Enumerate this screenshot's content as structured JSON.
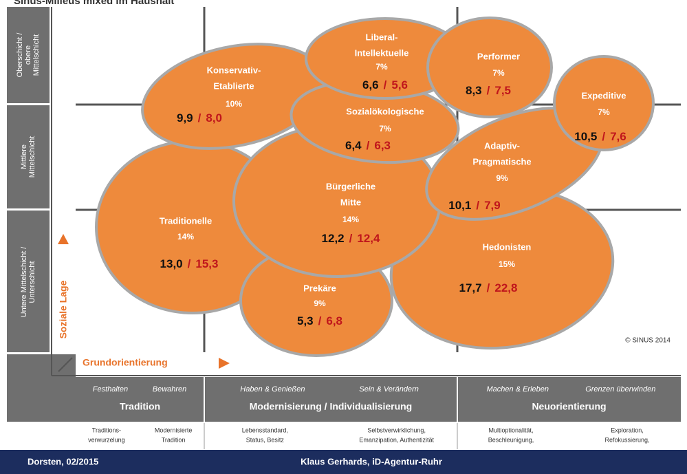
{
  "header": {
    "title": "Sinus-Milieus mixed im Haushalt"
  },
  "y_axis": {
    "rows": [
      [
        "Oberschicht /",
        "obere",
        "Mittelschicht"
      ],
      [
        "Mittlere",
        "Mittelschicht"
      ],
      [
        "Untere Mittelschicht /",
        "Unterschicht"
      ]
    ],
    "label": "Soziale Lage"
  },
  "x_axis": {
    "label": "Grundorientierung"
  },
  "separator": "/",
  "milieus": [
    {
      "name": [
        "Traditionelle"
      ],
      "share": "14%",
      "value_a": "13,0",
      "value_b": "15,3"
    },
    {
      "name": [
        "Hedonisten"
      ],
      "share": "15%",
      "value_a": "17,7",
      "value_b": "22,8"
    },
    {
      "name": [
        "Prekäre"
      ],
      "share": "9%",
      "value_a": "5,3",
      "value_b": "6,8"
    },
    {
      "name": [
        "Bürgerliche",
        "Mitte"
      ],
      "share": "14%",
      "value_a": "12,2",
      "value_b": "12,4"
    },
    {
      "name": [
        "Konservativ-",
        "Etablierte"
      ],
      "share": "10%",
      "value_a": "9,9",
      "value_b": "8,0"
    },
    {
      "name": [
        "Adaptiv-",
        "Pragmatische"
      ],
      "share": "9%",
      "value_a": "10,1",
      "value_b": "7,9"
    },
    {
      "name": [
        "Sozialökologische"
      ],
      "share": "7%",
      "value_a": "6,4",
      "value_b": "6,3"
    },
    {
      "name": [
        "Liberal-",
        "Intellektuelle"
      ],
      "share": "7%",
      "value_a": "6,6",
      "value_b": "5,6"
    },
    {
      "name": [
        "Performer"
      ],
      "share": "7%",
      "value_a": "8,3",
      "value_b": "7,5"
    },
    {
      "name": [
        "Expeditive"
      ],
      "share": "7%",
      "value_a": "10,5",
      "value_b": "7,6"
    }
  ],
  "copyright": "© SINUS 2014",
  "columns": [
    {
      "sub": [
        "Festhalten",
        "Bewahren"
      ],
      "title": "Tradition",
      "notes": [
        [
          "Traditions-",
          "verwurzelung"
        ],
        [
          "Modernisierte",
          "Tradition"
        ]
      ]
    },
    {
      "sub": [
        "Haben & Genießen",
        "Sein & Verändern"
      ],
      "title": "Modernisierung / Individualisierung",
      "notes": [
        [
          "Lebensstandard,",
          "Status, Besitz"
        ],
        [
          "Selbstverwirklichung,",
          "Emanzipation, Authentizität"
        ]
      ]
    },
    {
      "sub": [
        "Machen & Erleben",
        "Grenzen überwinden"
      ],
      "title": "Neuorientierung",
      "notes": [
        [
          "Multioptionalität,",
          "Beschleunigung,"
        ],
        [
          "Exploration,",
          "Refokussierung,"
        ]
      ]
    }
  ],
  "footer": {
    "left": "Dorsten, 02/2015",
    "center": "Klaus Gerhards, iD-Agentur-Ruhr"
  }
}
